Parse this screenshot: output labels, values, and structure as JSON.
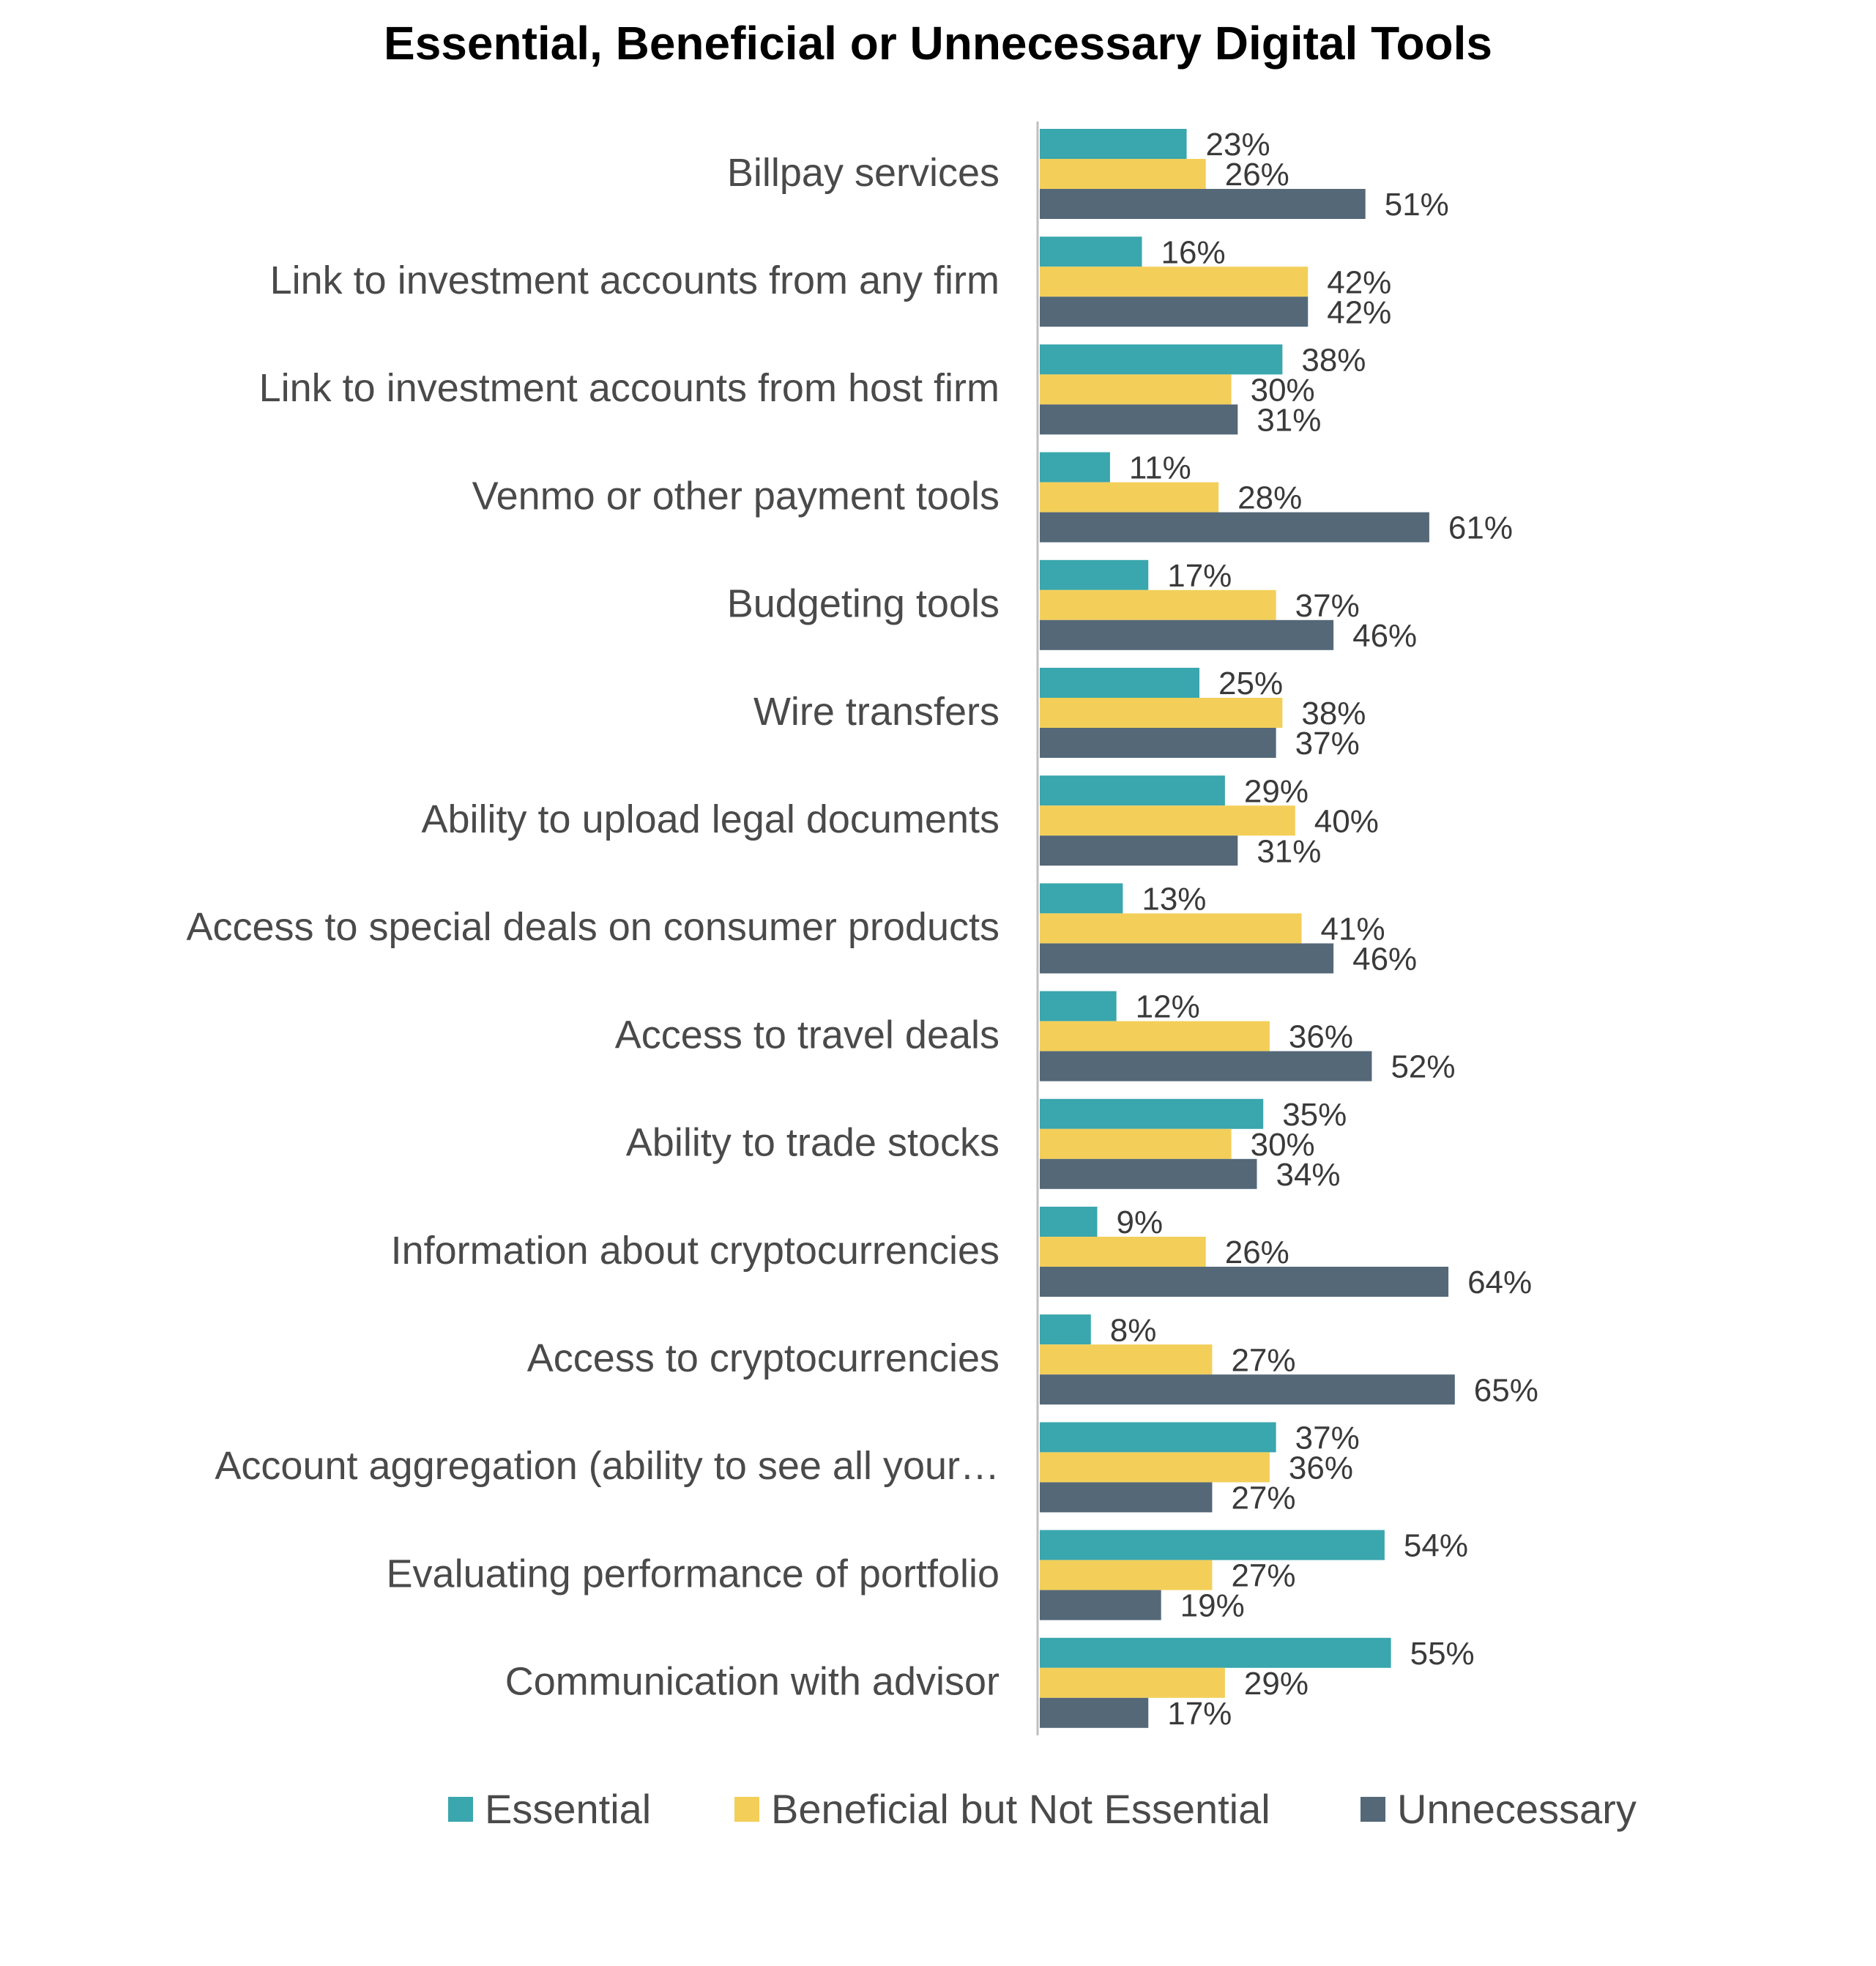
{
  "chart_data": {
    "type": "bar",
    "orientation": "horizontal",
    "title": "Essential, Beneficial or Unnecessary Digital Tools",
    "categories": [
      "Billpay services",
      "Link to investment accounts from any firm",
      "Link to investment accounts from host firm",
      "Venmo or other payment tools",
      "Budgeting tools",
      "Wire transfers",
      "Ability to upload legal documents",
      "Access to special deals on consumer products",
      "Access to travel deals",
      "Ability to trade stocks",
      "Information about cryptocurrencies",
      "Access to cryptocurrencies",
      "Account aggregation (ability to see all your…",
      "Evaluating performance of portfolio",
      "Communication with advisor"
    ],
    "series": [
      {
        "name": "Essential",
        "color": "#3aa6ad",
        "values": [
          23,
          16,
          38,
          11,
          17,
          25,
          29,
          13,
          12,
          35,
          9,
          8,
          37,
          54,
          55
        ],
        "labels": [
          "23%",
          "16%",
          "38%",
          "11%",
          "17%",
          "25%",
          "29%",
          "13%",
          "12%",
          "35%",
          "9%",
          "8%",
          "37%",
          "54%",
          "55%"
        ]
      },
      {
        "name": "Beneficial but Not Essential",
        "color": "#f3cf5a",
        "values": [
          26,
          42,
          30,
          28,
          37,
          38,
          40,
          41,
          36,
          30,
          26,
          27,
          36,
          27,
          29
        ],
        "labels": [
          "26%",
          "42%",
          "30%",
          "28%",
          "37%",
          "38%",
          "40%",
          "41%",
          "36%",
          "30%",
          "26%",
          "27%",
          "36%",
          "27%",
          "29%"
        ]
      },
      {
        "name": "Unnecessary",
        "color": "#546878",
        "values": [
          51,
          42,
          31,
          61,
          46,
          37,
          31,
          46,
          52,
          34,
          64,
          65,
          27,
          19,
          17
        ],
        "labels": [
          "51%",
          "42%",
          "31%",
          "61%",
          "46%",
          "37%",
          "31%",
          "46%",
          "52%",
          "34%",
          "64%",
          "65%",
          "27%",
          "19%",
          "17%"
        ]
      }
    ],
    "xlim": [
      0,
      70
    ],
    "grid": false,
    "legend_position": "bottom"
  }
}
